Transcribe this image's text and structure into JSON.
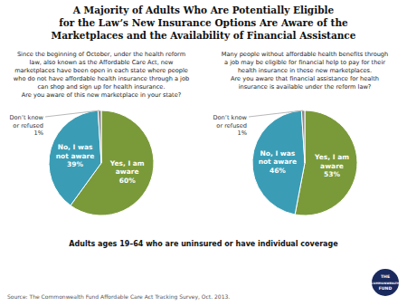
{
  "chart_data": [
    {
      "type": "pie",
      "title": "A Majority of Adults Who Are Potentially Eligible\nfor the Law’s New Insurance Options Are Aware of the\nMarketplaces and the Availability of Financial Assistance",
      "subtitle": "Adults ages 19–64 who are uninsured or have individual coverage",
      "annotations": [
        "Since the beginning of October, under the health reform\nlaw, also known as the Affordable Care Act, new\nmarketplaces have been open in each state where people\nwho do not have affordable health insurance through a job\ncan shop and sign up for health insurance.\nAre you aware of this new marketplace in your state?",
        "Source: The Commonwealth Fund Affordable Care Act Tracking Survey, Oct. 2013.",
        "THE",
        "COMMONWEALTH",
        "FUND"
      ],
      "categories": [
        "Yes, I am\naware",
        "No, I was\nnot aware",
        "Don’t know\nor refused"
      ],
      "values": [
        60,
        39,
        1
      ],
      "value_labels": [
        "60%",
        "39%",
        "1%"
      ],
      "colors": [
        "#7a9a3a",
        "#3a9db5",
        "#8a8a8a"
      ],
      "data_labels": true
    },
    {
      "type": "pie",
      "annotations": [
        "Many people without affordable health benefits through\na job may be eligible for financial help to pay for their\nhealth insurance in these new marketplaces.\nAre you aware that financial assistance for health\ninsurance is available under the reform law?"
      ],
      "categories": [
        "Yes, I am\naware",
        "No, I was\nnot aware",
        "Don’t know\nor refused"
      ],
      "values": [
        53,
        46,
        1
      ],
      "value_labels": [
        "53%",
        "46%",
        "1%"
      ],
      "colors": [
        "#7a9a3a",
        "#3a9db5",
        "#8a8a8a"
      ],
      "data_labels": true
    }
  ]
}
